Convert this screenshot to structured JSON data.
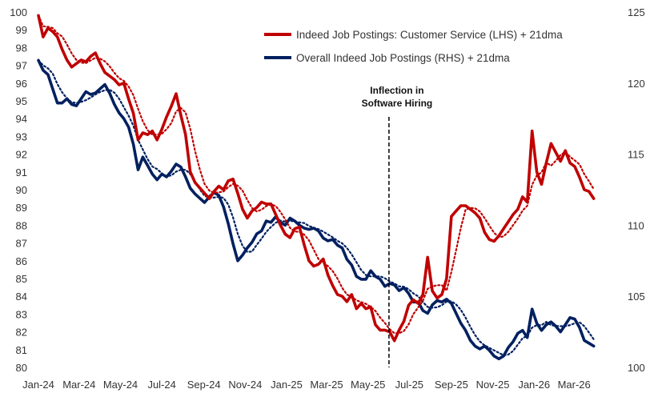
{
  "chart_data": {
    "type": "line",
    "title": "",
    "left_axis": {
      "min": 80,
      "max": 100,
      "ticks": [
        80,
        81,
        82,
        83,
        84,
        85,
        86,
        87,
        88,
        89,
        90,
        91,
        92,
        93,
        94,
        95,
        96,
        97,
        98,
        99,
        100
      ]
    },
    "right_axis": {
      "min": 100,
      "max": 125,
      "ticks": [
        100,
        105,
        110,
        115,
        120,
        125
      ]
    },
    "x_axis": {
      "start": "2024-01-01",
      "end": "2026-04-30",
      "ticks": [
        "Jan-24",
        "Mar-24",
        "May-24",
        "Jul-24",
        "Sep-24",
        "Nov-24",
        "Jan-25",
        "Mar-25",
        "May-25",
        "Jul-25",
        "Sep-25",
        "Nov-25",
        "Jan-26",
        "Mar-26"
      ],
      "tick_dates": [
        "2024-01-01",
        "2024-03-01",
        "2024-05-01",
        "2024-07-01",
        "2024-09-01",
        "2024-11-01",
        "2025-01-01",
        "2025-03-01",
        "2025-05-01",
        "2025-07-01",
        "2025-09-01",
        "2025-11-01",
        "2026-01-01",
        "2026-03-01"
      ]
    },
    "grid": false,
    "legend_position": "top-right",
    "annotation": {
      "date": "2025-06-01",
      "label_line1": "Inflection in",
      "label_line2": "Software Hiring"
    },
    "series": [
      {
        "name": "Indeed Job Postings: Customer Service (LHS) + 21dma",
        "axis": "left",
        "color": "#c00000",
        "values": [
          [
            "2024-01-01",
            99.8
          ],
          [
            "2024-01-08",
            98.6
          ],
          [
            "2024-01-15",
            99.1
          ],
          [
            "2024-01-22",
            98.9
          ],
          [
            "2024-01-29",
            98.6
          ],
          [
            "2024-02-05",
            97.9
          ],
          [
            "2024-02-12",
            97.3
          ],
          [
            "2024-02-19",
            96.9
          ],
          [
            "2024-02-26",
            97.1
          ],
          [
            "2024-03-04",
            97.3
          ],
          [
            "2024-03-11",
            97.2
          ],
          [
            "2024-03-18",
            97.5
          ],
          [
            "2024-03-25",
            97.7
          ],
          [
            "2024-04-01",
            97.1
          ],
          [
            "2024-04-08",
            96.6
          ],
          [
            "2024-04-15",
            96.4
          ],
          [
            "2024-04-22",
            96.2
          ],
          [
            "2024-04-29",
            95.9
          ],
          [
            "2024-05-06",
            96.0
          ],
          [
            "2024-05-13",
            95.1
          ],
          [
            "2024-05-20",
            94.3
          ],
          [
            "2024-05-27",
            92.8
          ],
          [
            "2024-06-03",
            93.2
          ],
          [
            "2024-06-10",
            93.1
          ],
          [
            "2024-06-17",
            93.3
          ],
          [
            "2024-06-24",
            92.8
          ],
          [
            "2024-07-01",
            93.4
          ],
          [
            "2024-07-08",
            94.1
          ],
          [
            "2024-07-15",
            94.7
          ],
          [
            "2024-07-22",
            95.4
          ],
          [
            "2024-07-29",
            94.2
          ],
          [
            "2024-08-05",
            93.1
          ],
          [
            "2024-08-12",
            91.0
          ],
          [
            "2024-08-19",
            90.4
          ],
          [
            "2024-08-26",
            90.1
          ],
          [
            "2024-09-02",
            89.8
          ],
          [
            "2024-09-09",
            89.5
          ],
          [
            "2024-09-16",
            89.9
          ],
          [
            "2024-09-23",
            90.2
          ],
          [
            "2024-09-30",
            90.0
          ],
          [
            "2024-10-07",
            90.5
          ],
          [
            "2024-10-14",
            90.6
          ],
          [
            "2024-10-21",
            89.8
          ],
          [
            "2024-10-28",
            88.9
          ],
          [
            "2024-11-04",
            88.4
          ],
          [
            "2024-11-11",
            88.8
          ],
          [
            "2024-11-18",
            89.0
          ],
          [
            "2024-11-25",
            89.3
          ],
          [
            "2024-12-02",
            89.2
          ],
          [
            "2024-12-09",
            89.2
          ],
          [
            "2024-12-16",
            88.6
          ],
          [
            "2024-12-23",
            88.0
          ],
          [
            "2024-12-30",
            87.5
          ],
          [
            "2025-01-06",
            87.3
          ],
          [
            "2025-01-13",
            87.8
          ],
          [
            "2025-01-20",
            87.9
          ],
          [
            "2025-01-27",
            86.9
          ],
          [
            "2025-02-03",
            86.0
          ],
          [
            "2025-02-10",
            85.7
          ],
          [
            "2025-02-17",
            85.8
          ],
          [
            "2025-02-24",
            86.1
          ],
          [
            "2025-03-03",
            85.2
          ],
          [
            "2025-03-10",
            84.6
          ],
          [
            "2025-03-17",
            84.1
          ],
          [
            "2025-03-24",
            84.0
          ],
          [
            "2025-03-31",
            83.7
          ],
          [
            "2025-04-07",
            84.1
          ],
          [
            "2025-04-14",
            83.3
          ],
          [
            "2025-04-21",
            83.6
          ],
          [
            "2025-04-28",
            83.3
          ],
          [
            "2025-05-05",
            83.4
          ],
          [
            "2025-05-12",
            82.4
          ],
          [
            "2025-05-19",
            82.1
          ],
          [
            "2025-05-26",
            82.1
          ],
          [
            "2025-06-02",
            82.0
          ],
          [
            "2025-06-09",
            81.5
          ],
          [
            "2025-06-16",
            82.1
          ],
          [
            "2025-06-23",
            82.6
          ],
          [
            "2025-06-30",
            83.5
          ],
          [
            "2025-07-07",
            83.8
          ],
          [
            "2025-07-14",
            83.6
          ],
          [
            "2025-07-21",
            84.1
          ],
          [
            "2025-07-28",
            86.2
          ],
          [
            "2025-08-04",
            84.3
          ],
          [
            "2025-08-11",
            83.9
          ],
          [
            "2025-08-18",
            84.1
          ],
          [
            "2025-08-25",
            85.0
          ],
          [
            "2025-09-01",
            88.5
          ],
          [
            "2025-09-08",
            88.8
          ],
          [
            "2025-09-15",
            89.1
          ],
          [
            "2025-09-22",
            89.1
          ],
          [
            "2025-09-29",
            88.9
          ],
          [
            "2025-10-06",
            88.7
          ],
          [
            "2025-10-13",
            88.4
          ],
          [
            "2025-10-20",
            87.6
          ],
          [
            "2025-10-27",
            87.2
          ],
          [
            "2025-11-03",
            87.1
          ],
          [
            "2025-11-10",
            87.4
          ],
          [
            "2025-11-17",
            87.8
          ],
          [
            "2025-11-24",
            88.2
          ],
          [
            "2025-12-01",
            88.6
          ],
          [
            "2025-12-08",
            88.9
          ],
          [
            "2025-12-15",
            89.6
          ],
          [
            "2025-12-22",
            89.3
          ],
          [
            "2025-12-29",
            93.3
          ],
          [
            "2026-01-05",
            91.0
          ],
          [
            "2026-01-12",
            90.3
          ],
          [
            "2026-01-19",
            91.5
          ],
          [
            "2026-01-26",
            92.6
          ],
          [
            "2026-02-02",
            92.1
          ],
          [
            "2026-02-09",
            91.6
          ],
          [
            "2026-02-16",
            92.2
          ],
          [
            "2026-02-23",
            91.5
          ],
          [
            "2026-03-02",
            91.3
          ],
          [
            "2026-03-09",
            90.7
          ],
          [
            "2026-03-16",
            90.0
          ],
          [
            "2026-03-23",
            89.9
          ],
          [
            "2026-03-30",
            89.5
          ]
        ]
      },
      {
        "name": "Overall Indeed Job Postings (RHS) + 21dma",
        "axis": "right",
        "color": "#002060",
        "values": [
          [
            "2024-01-01",
            121.6
          ],
          [
            "2024-01-08",
            120.9
          ],
          [
            "2024-01-15",
            120.6
          ],
          [
            "2024-01-22",
            119.6
          ],
          [
            "2024-01-29",
            118.6
          ],
          [
            "2024-02-05",
            118.6
          ],
          [
            "2024-02-12",
            118.9
          ],
          [
            "2024-02-19",
            118.5
          ],
          [
            "2024-02-26",
            118.4
          ],
          [
            "2024-03-04",
            118.9
          ],
          [
            "2024-03-11",
            119.4
          ],
          [
            "2024-03-18",
            119.2
          ],
          [
            "2024-03-25",
            119.3
          ],
          [
            "2024-04-01",
            119.6
          ],
          [
            "2024-04-08",
            119.9
          ],
          [
            "2024-04-15",
            119.3
          ],
          [
            "2024-04-22",
            118.5
          ],
          [
            "2024-04-29",
            117.9
          ],
          [
            "2024-05-06",
            117.5
          ],
          [
            "2024-05-13",
            116.9
          ],
          [
            "2024-05-20",
            115.7
          ],
          [
            "2024-05-27",
            113.9
          ],
          [
            "2024-06-03",
            114.8
          ],
          [
            "2024-06-10",
            114.2
          ],
          [
            "2024-06-17",
            113.6
          ],
          [
            "2024-06-24",
            113.2
          ],
          [
            "2024-07-01",
            113.6
          ],
          [
            "2024-07-08",
            113.4
          ],
          [
            "2024-07-15",
            113.8
          ],
          [
            "2024-07-22",
            114.3
          ],
          [
            "2024-07-29",
            114.1
          ],
          [
            "2024-08-05",
            113.4
          ],
          [
            "2024-08-12",
            112.6
          ],
          [
            "2024-08-19",
            112.2
          ],
          [
            "2024-08-26",
            111.9
          ],
          [
            "2024-09-02",
            111.6
          ],
          [
            "2024-09-09",
            112.0
          ],
          [
            "2024-09-16",
            112.3
          ],
          [
            "2024-09-23",
            112.1
          ],
          [
            "2024-09-30",
            111.3
          ],
          [
            "2024-10-07",
            110.1
          ],
          [
            "2024-10-14",
            108.7
          ],
          [
            "2024-10-21",
            107.5
          ],
          [
            "2024-10-28",
            107.9
          ],
          [
            "2024-11-04",
            108.4
          ],
          [
            "2024-11-11",
            108.8
          ],
          [
            "2024-11-18",
            109.4
          ],
          [
            "2024-11-25",
            109.6
          ],
          [
            "2024-12-02",
            110.3
          ],
          [
            "2024-12-09",
            110.2
          ],
          [
            "2024-12-16",
            110.6
          ],
          [
            "2024-12-23",
            110.2
          ],
          [
            "2024-12-30",
            110.0
          ],
          [
            "2025-01-06",
            110.5
          ],
          [
            "2025-01-13",
            110.3
          ],
          [
            "2025-01-20",
            110.0
          ],
          [
            "2025-01-27",
            109.8
          ],
          [
            "2025-02-03",
            109.7
          ],
          [
            "2025-02-10",
            109.8
          ],
          [
            "2025-02-17",
            109.6
          ],
          [
            "2025-02-24",
            109.1
          ],
          [
            "2025-03-03",
            108.9
          ],
          [
            "2025-03-10",
            109.0
          ],
          [
            "2025-03-17",
            108.6
          ],
          [
            "2025-03-24",
            108.4
          ],
          [
            "2025-03-31",
            107.6
          ],
          [
            "2025-04-07",
            107.2
          ],
          [
            "2025-04-14",
            106.4
          ],
          [
            "2025-04-21",
            106.2
          ],
          [
            "2025-04-28",
            106.2
          ],
          [
            "2025-05-05",
            106.8
          ],
          [
            "2025-05-12",
            106.4
          ],
          [
            "2025-05-19",
            106.2
          ],
          [
            "2025-05-26",
            105.7
          ],
          [
            "2025-06-02",
            105.9
          ],
          [
            "2025-06-09",
            105.8
          ],
          [
            "2025-06-16",
            105.4
          ],
          [
            "2025-06-23",
            105.6
          ],
          [
            "2025-06-30",
            105.2
          ],
          [
            "2025-07-07",
            104.6
          ],
          [
            "2025-07-14",
            104.6
          ],
          [
            "2025-07-21",
            104.0
          ],
          [
            "2025-07-28",
            103.8
          ],
          [
            "2025-08-04",
            104.4
          ],
          [
            "2025-08-11",
            104.7
          ],
          [
            "2025-08-18",
            104.6
          ],
          [
            "2025-08-25",
            104.8
          ],
          [
            "2025-09-01",
            104.5
          ],
          [
            "2025-09-08",
            103.8
          ],
          [
            "2025-09-15",
            103.1
          ],
          [
            "2025-09-22",
            102.6
          ],
          [
            "2025-09-29",
            101.9
          ],
          [
            "2025-10-06",
            101.5
          ],
          [
            "2025-10-13",
            101.3
          ],
          [
            "2025-10-20",
            101.5
          ],
          [
            "2025-10-27",
            101.2
          ],
          [
            "2025-11-03",
            100.8
          ],
          [
            "2025-11-10",
            100.6
          ],
          [
            "2025-11-17",
            100.8
          ],
          [
            "2025-11-24",
            101.4
          ],
          [
            "2025-12-01",
            101.8
          ],
          [
            "2025-12-08",
            102.4
          ],
          [
            "2025-12-15",
            102.6
          ],
          [
            "2025-12-22",
            102.1
          ],
          [
            "2025-12-29",
            104.1
          ],
          [
            "2026-01-05",
            103.1
          ],
          [
            "2026-01-12",
            102.6
          ],
          [
            "2026-01-19",
            103.0
          ],
          [
            "2026-01-26",
            103.2
          ],
          [
            "2026-02-02",
            102.9
          ],
          [
            "2026-02-09",
            102.5
          ],
          [
            "2026-02-16",
            103.0
          ],
          [
            "2026-02-23",
            103.5
          ],
          [
            "2026-03-02",
            103.4
          ],
          [
            "2026-03-09",
            102.8
          ],
          [
            "2026-03-16",
            101.9
          ],
          [
            "2026-03-23",
            101.7
          ],
          [
            "2026-03-30",
            101.5
          ]
        ]
      }
    ]
  }
}
